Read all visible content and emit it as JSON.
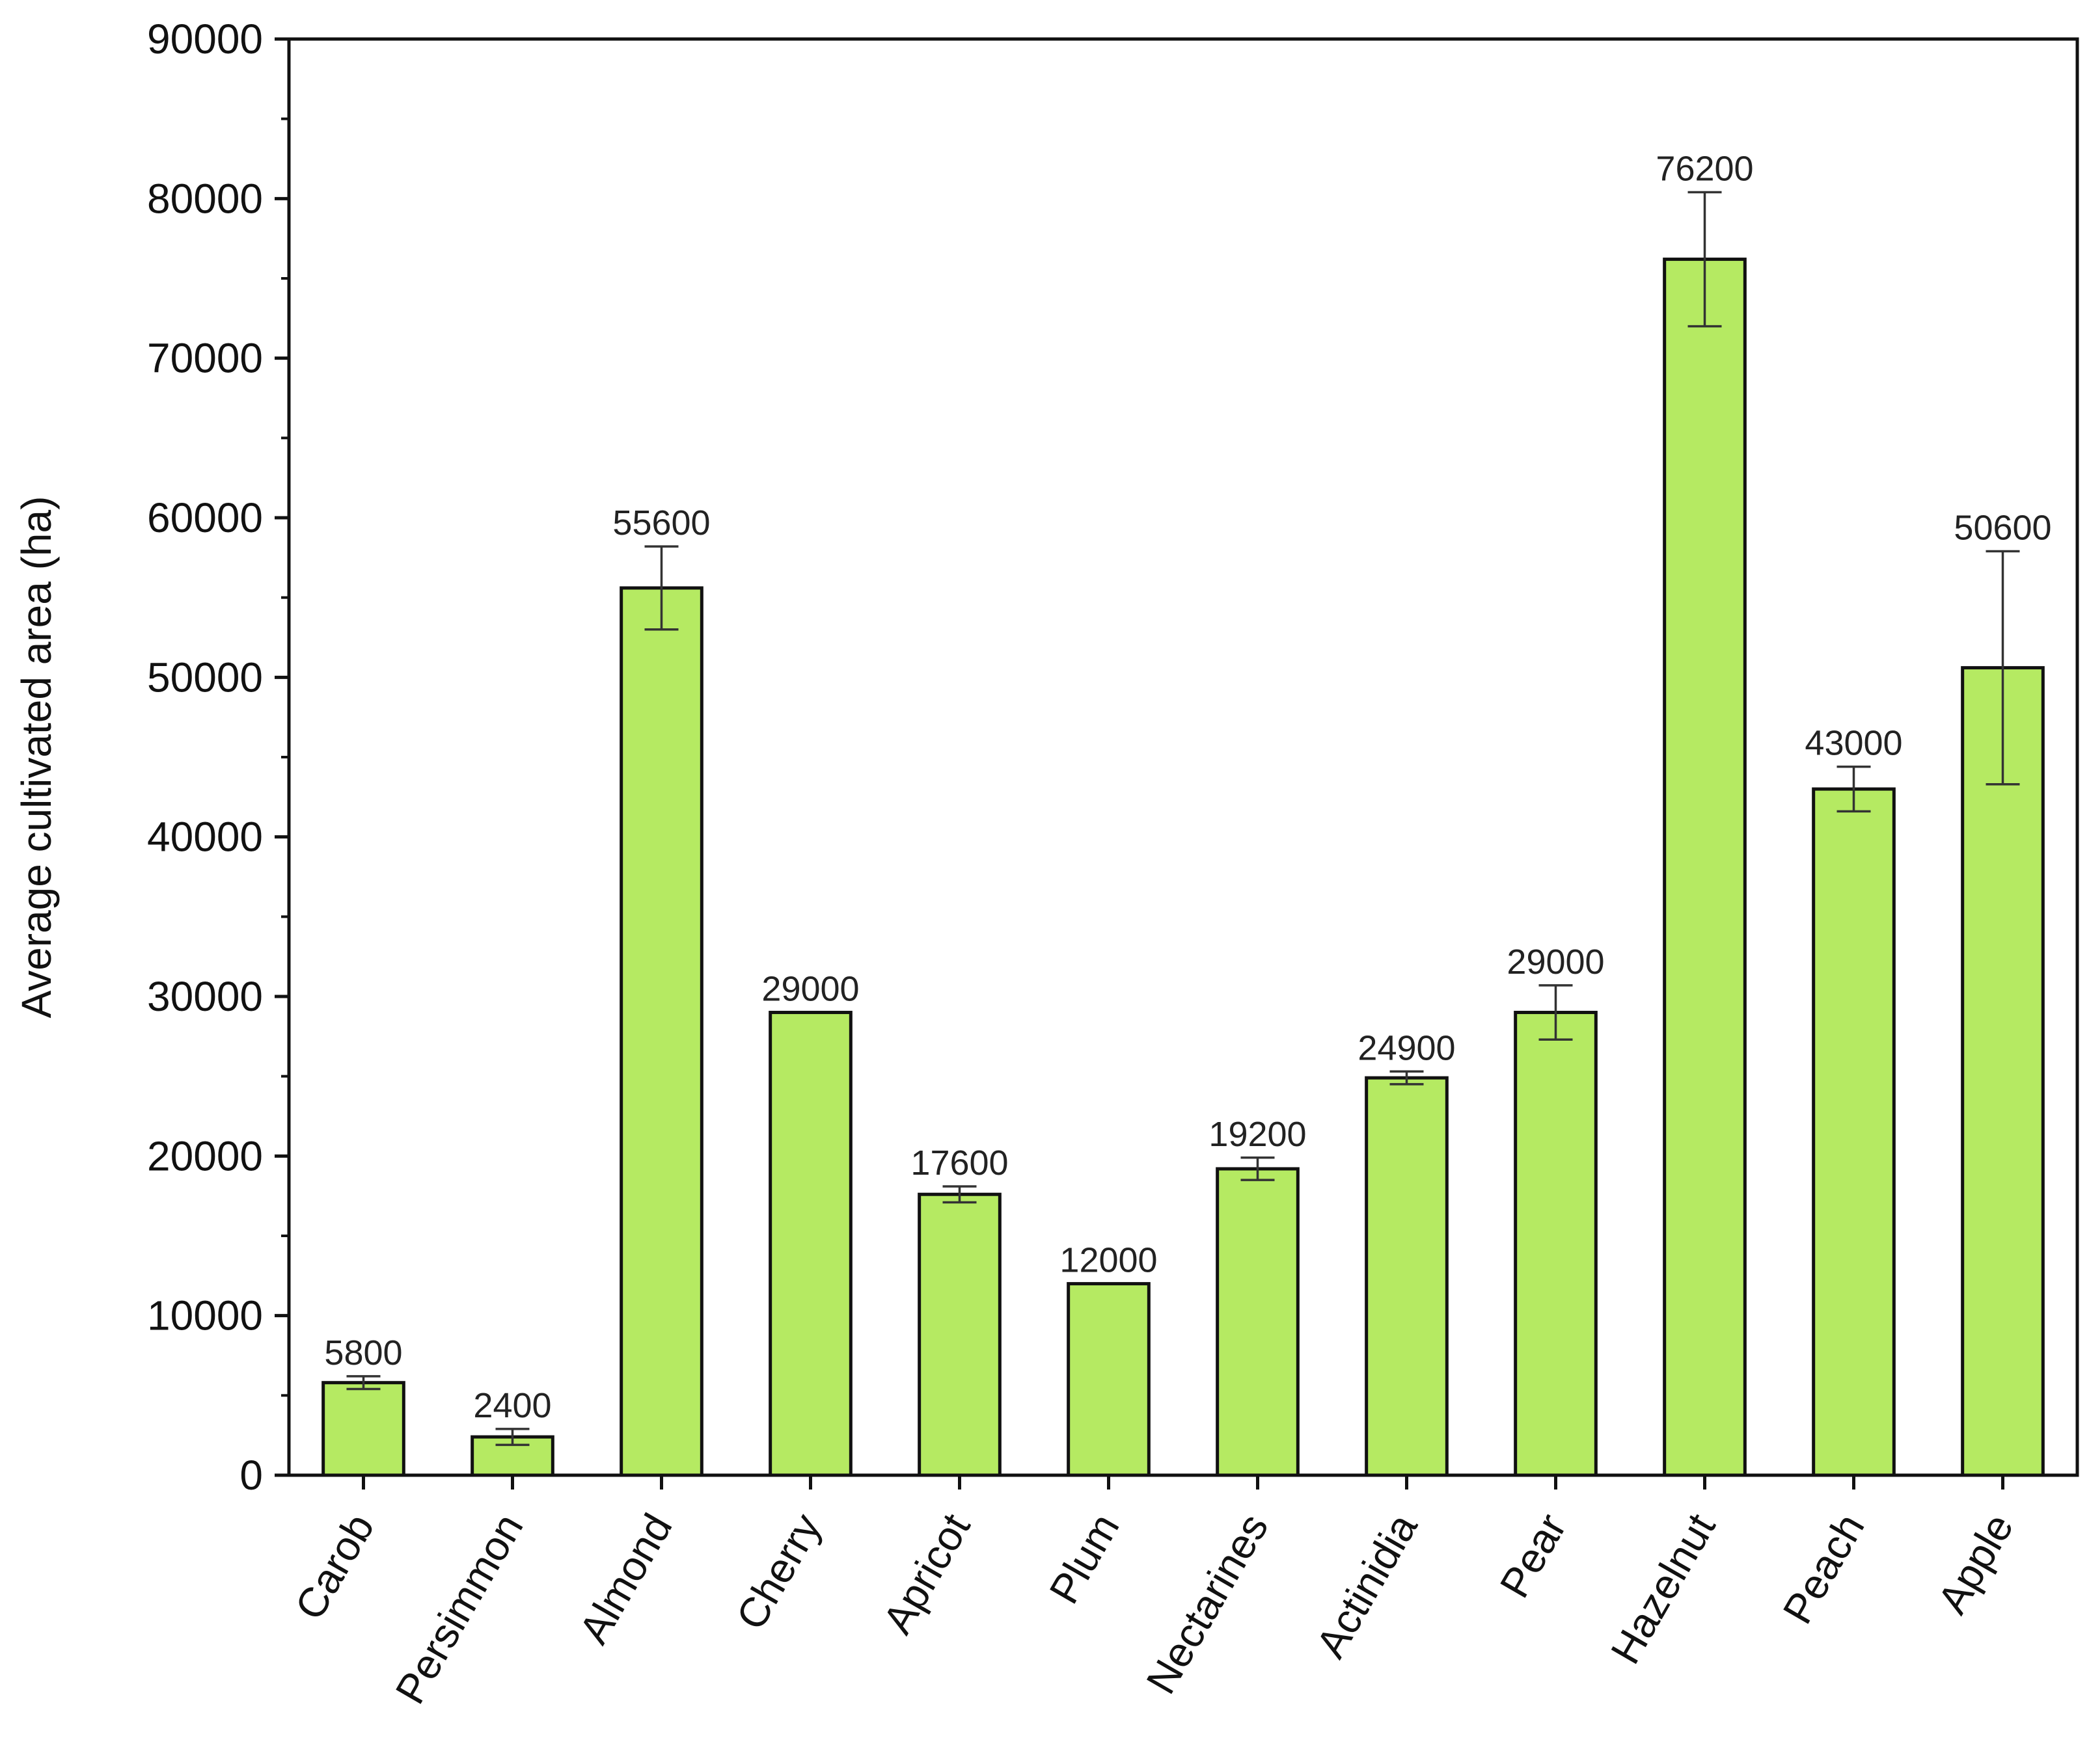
{
  "chart_data": {
    "type": "bar",
    "title": "",
    "xlabel": "",
    "ylabel": "Average cultivated area (ha)",
    "ylim": [
      0,
      90000
    ],
    "yticks": [
      0,
      10000,
      20000,
      30000,
      40000,
      50000,
      60000,
      70000,
      80000,
      90000
    ],
    "grid": false,
    "bar_color": "#b5ea62",
    "bar_edge_color": "#111111",
    "categories": [
      "Carob",
      "Persimmon",
      "Almond",
      "Cherry",
      "Apricot",
      "Plum",
      "Nectarines",
      "Actinidia",
      "Pear",
      "Hazelnut",
      "Peach",
      "Apple"
    ],
    "values": [
      5800,
      2400,
      55600,
      29000,
      17600,
      12000,
      19200,
      24900,
      29000,
      76200,
      43000,
      50600
    ],
    "value_labels": [
      "5800",
      "2400",
      "55600",
      "29000",
      "17600",
      "12000",
      "19200",
      "24900",
      "29000",
      "76200",
      "43000",
      "50600"
    ],
    "error": [
      400,
      500,
      2600,
      0,
      500,
      0,
      700,
      400,
      1700,
      4200,
      1400,
      7300
    ]
  }
}
